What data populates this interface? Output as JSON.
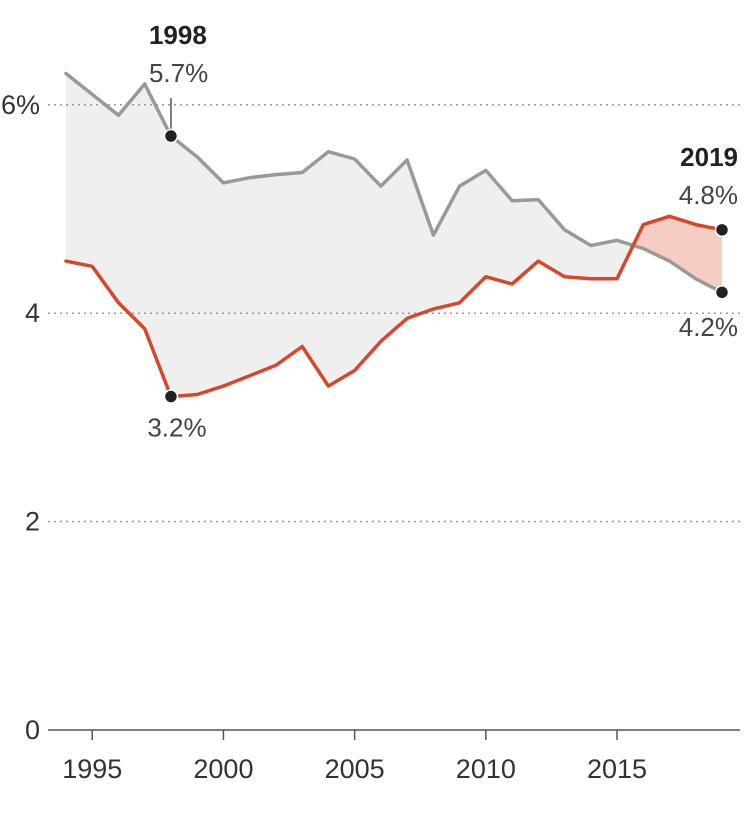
{
  "chart_data": {
    "type": "line",
    "title": "",
    "xlabel": "",
    "ylabel": "",
    "ylim": [
      0,
      7
    ],
    "xlim": [
      1994,
      2019
    ],
    "y_ticks": [
      {
        "value": 0,
        "label": "0"
      },
      {
        "value": 2,
        "label": "2"
      },
      {
        "value": 4,
        "label": "4"
      },
      {
        "value": 6,
        "label": "6%"
      }
    ],
    "x_ticks": [
      {
        "value": 1995,
        "label": "1995"
      },
      {
        "value": 2000,
        "label": "2000"
      },
      {
        "value": 2005,
        "label": "2005"
      },
      {
        "value": 2010,
        "label": "2010"
      },
      {
        "value": 2015,
        "label": "2015"
      }
    ],
    "x": [
      1994,
      1995,
      1996,
      1997,
      1998,
      1999,
      2000,
      2001,
      2002,
      2003,
      2004,
      2005,
      2006,
      2007,
      2008,
      2009,
      2010,
      2011,
      2012,
      2013,
      2014,
      2015,
      2016,
      2017,
      2018,
      2019
    ],
    "series": [
      {
        "name": "gray",
        "color": "#999999",
        "values": [
          6.3,
          6.1,
          5.9,
          6.2,
          5.7,
          5.5,
          5.25,
          5.3,
          5.33,
          5.35,
          5.55,
          5.48,
          5.22,
          5.47,
          4.75,
          5.22,
          5.37,
          5.08,
          5.09,
          4.8,
          4.65,
          4.7,
          4.62,
          4.5,
          4.33,
          4.2
        ]
      },
      {
        "name": "red",
        "color": "#d7472b",
        "values": [
          4.5,
          4.45,
          4.1,
          3.85,
          3.2,
          3.22,
          3.3,
          3.4,
          3.5,
          3.68,
          3.3,
          3.45,
          3.73,
          3.95,
          4.04,
          4.1,
          4.35,
          4.28,
          4.5,
          4.35,
          4.33,
          4.33,
          4.85,
          4.93,
          4.85,
          4.8
        ]
      }
    ],
    "annotations": [
      {
        "year_label": "1998",
        "value_label": "5.7%",
        "x": 1998,
        "y": 5.7,
        "series": "gray"
      },
      {
        "value_label": "3.2%",
        "x": 1998,
        "y": 3.2,
        "series": "red"
      },
      {
        "year_label": "2019",
        "value_label": "4.8%",
        "x": 2019,
        "y": 4.8,
        "series": "red"
      },
      {
        "value_label": "4.2%",
        "x": 2019,
        "y": 4.2,
        "series": "gray"
      }
    ],
    "fill_colors": {
      "gray_above": "#efefef",
      "red_above": "#f5cdc3"
    },
    "grid": true
  }
}
